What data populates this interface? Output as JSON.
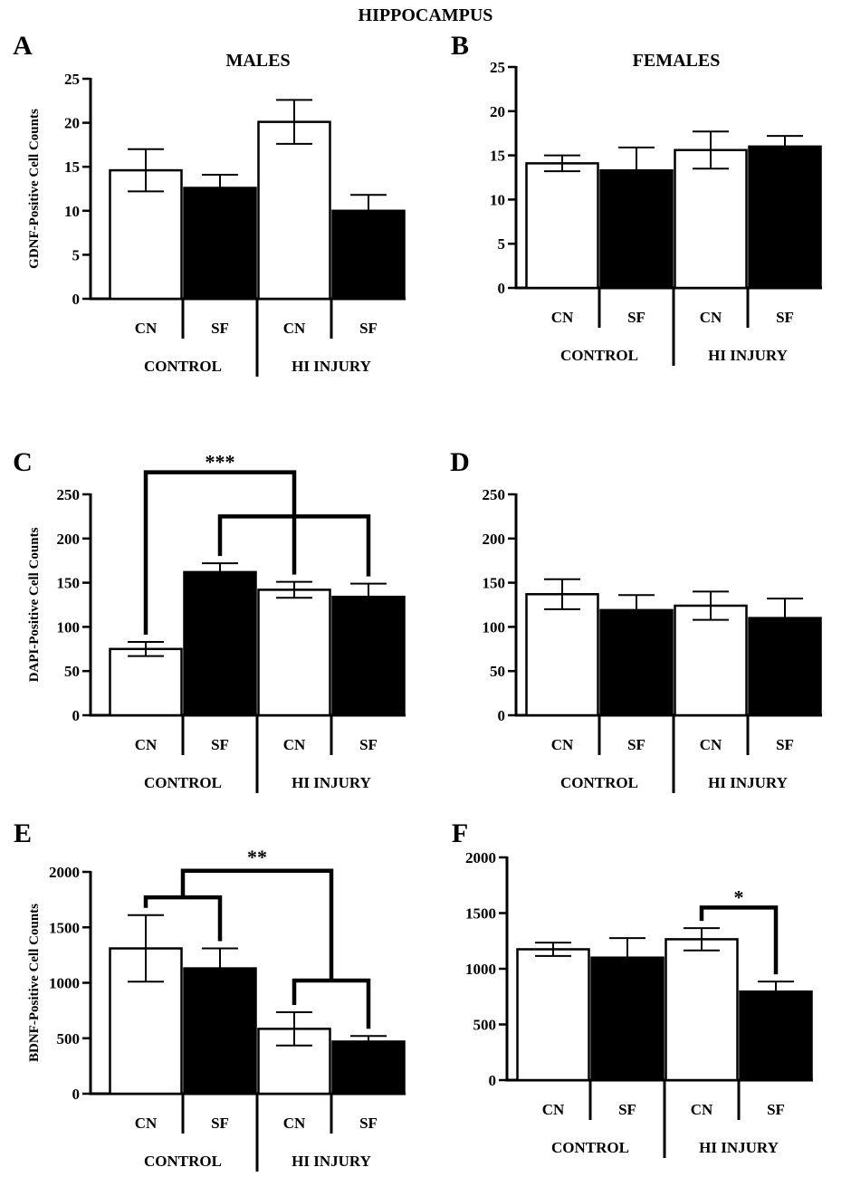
{
  "figure_title": "HIPPOCAMPUS",
  "chart_data": [
    {
      "type": "bar",
      "panel": "A",
      "title": "MALES",
      "ylabel": "GDNF-Positive Cell Counts",
      "ylim": [
        0,
        25
      ],
      "yticks": [
        0,
        5,
        10,
        15,
        20,
        25
      ],
      "categories": [
        "CN",
        "SF",
        "CN",
        "SF"
      ],
      "groups": [
        "CONTROL",
        "HI INJURY"
      ],
      "values": [
        14.6,
        12.6,
        20.1,
        10.0
      ],
      "errors": [
        2.4,
        1.5,
        2.5,
        1.8
      ],
      "fills": [
        "#ffffff",
        "#000000",
        "#ffffff",
        "#000000"
      ],
      "annotations": []
    },
    {
      "type": "bar",
      "panel": "B",
      "title": "FEMALES",
      "ylabel": "",
      "ylim": [
        0,
        25
      ],
      "yticks": [
        0,
        5,
        10,
        15,
        20,
        25
      ],
      "categories": [
        "CN",
        "SF",
        "CN",
        "SF"
      ],
      "groups": [
        "CONTROL",
        "HI INJURY"
      ],
      "values": [
        14.1,
        13.3,
        15.6,
        16.0
      ],
      "errors": [
        0.9,
        2.6,
        2.1,
        1.2
      ],
      "fills": [
        "#ffffff",
        "#000000",
        "#ffffff",
        "#000000"
      ],
      "annotations": []
    },
    {
      "type": "bar",
      "panel": "C",
      "title": "",
      "ylabel": "DAPI-Positive Cell Counts",
      "ylim": [
        0,
        250
      ],
      "yticks": [
        0,
        50,
        100,
        150,
        200,
        250
      ],
      "categories": [
        "CN",
        "SF",
        "CN",
        "SF"
      ],
      "groups": [
        "CONTROL",
        "HI INJURY"
      ],
      "values": [
        75,
        162,
        142,
        134
      ],
      "errors": [
        8,
        10,
        9,
        15
      ],
      "fills": [
        "#ffffff",
        "#000000",
        "#ffffff",
        "#000000"
      ],
      "annotations": [
        {
          "from": 0,
          "to": 2,
          "level": 275,
          "label": "***"
        },
        {
          "from": 1,
          "to": 3,
          "level": 225,
          "label": ""
        }
      ]
    },
    {
      "type": "bar",
      "panel": "D",
      "title": "",
      "ylabel": "",
      "ylim": [
        0,
        250
      ],
      "yticks": [
        0,
        50,
        100,
        150,
        200,
        250
      ],
      "categories": [
        "CN",
        "SF",
        "CN",
        "SF"
      ],
      "groups": [
        "CONTROL",
        "HI INJURY"
      ],
      "values": [
        137,
        119,
        124,
        110
      ],
      "errors": [
        17,
        17,
        16,
        22
      ],
      "fills": [
        "#ffffff",
        "#000000",
        "#ffffff",
        "#000000"
      ],
      "annotations": []
    },
    {
      "type": "bar",
      "panel": "E",
      "title": "",
      "ylabel": "BDNF-Positive Cell Counts",
      "ylim": [
        0,
        2000
      ],
      "yticks": [
        0,
        500,
        1000,
        1500,
        2000
      ],
      "categories": [
        "CN",
        "SF",
        "CN",
        "SF"
      ],
      "groups": [
        "CONTROL",
        "HI INJURY"
      ],
      "values": [
        1310,
        1130,
        585,
        470
      ],
      "errors": [
        300,
        180,
        150,
        50
      ],
      "fills": [
        "#ffffff",
        "#000000",
        "#ffffff",
        "#000000"
      ],
      "annotations": [
        {
          "mode": "bridge",
          "from": 0,
          "to": 1,
          "level": 1770,
          "label": "",
          "label_level": 0
        },
        {
          "mode": "bridge",
          "from": 2,
          "to": 3,
          "level": 1020,
          "label": "",
          "label_level": 0
        },
        {
          "mode": "outer",
          "from": 0.5,
          "to": 2.5,
          "level": 2010,
          "label": "**",
          "label_level": 2140
        }
      ]
    },
    {
      "type": "bar",
      "panel": "F",
      "title": "",
      "ylabel": "",
      "ylim": [
        0,
        2000
      ],
      "yticks": [
        0,
        500,
        1000,
        1500,
        2000
      ],
      "categories": [
        "CN",
        "SF",
        "CN",
        "SF"
      ],
      "groups": [
        "CONTROL",
        "HI INJURY"
      ],
      "values": [
        1175,
        1100,
        1265,
        795
      ],
      "errors": [
        60,
        175,
        100,
        90
      ],
      "fills": [
        "#ffffff",
        "#000000",
        "#ffffff",
        "#000000"
      ],
      "annotations": [
        {
          "from": 2,
          "to": 3,
          "level": 1550,
          "label": "*"
        }
      ]
    }
  ]
}
